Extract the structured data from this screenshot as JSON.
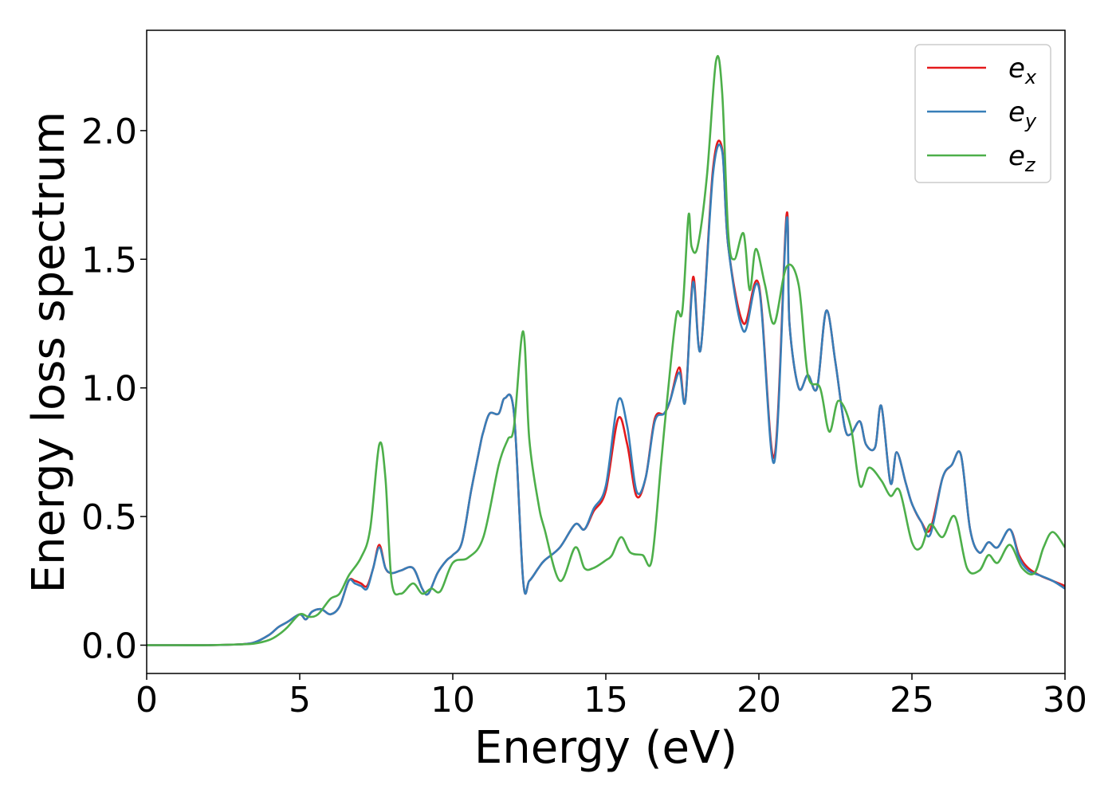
{
  "chart_data": {
    "type": "line",
    "title": "",
    "xlabel": "Energy (eV)",
    "ylabel": "Energy loss spectrum",
    "xlim": [
      0,
      30
    ],
    "ylim": [
      -0.11,
      2.39
    ],
    "xticks": [
      0,
      5,
      10,
      15,
      20,
      25,
      30
    ],
    "xtick_labels": [
      "0",
      "5",
      "10",
      "15",
      "20",
      "25",
      "30"
    ],
    "yticks": [
      0.0,
      0.5,
      1.0,
      1.5,
      2.0
    ],
    "ytick_labels": [
      "0.0",
      "0.5",
      "1.0",
      "1.5",
      "2.0"
    ],
    "grid": false,
    "legend_position": "top-right",
    "series": [
      {
        "name": "e_x",
        "label_base": "e",
        "label_sub": "x",
        "color": "#e41a1c",
        "x": [
          0,
          1,
          2,
          3,
          3.5,
          4,
          4.3,
          4.6,
          5,
          5.2,
          5.4,
          5.7,
          6,
          6.3,
          6.6,
          6.8,
          7,
          7.2,
          7.4,
          7.6,
          7.8,
          8,
          8.3,
          8.7,
          9,
          9.2,
          9.5,
          9.8,
          10,
          10.3,
          10.6,
          10.9,
          11,
          11.2,
          11.5,
          11.7,
          12,
          12.3,
          12.5,
          12.8,
          13,
          13.5,
          14,
          14.3,
          14.6,
          15,
          15.4,
          15.7,
          16,
          16.3,
          16.6,
          16.9,
          17.1,
          17.4,
          17.6,
          17.85,
          18.1,
          18.5,
          18.8,
          19,
          19.5,
          20,
          20.5,
          20.9,
          21,
          21.3,
          21.6,
          21.9,
          22.2,
          22.5,
          22.8,
          23,
          23.3,
          23.5,
          23.8,
          24,
          24.3,
          24.5,
          24.8,
          25,
          25.3,
          25.6,
          26,
          26.3,
          26.6,
          26.9,
          27.2,
          27.5,
          27.8,
          28.2,
          28.5,
          28.8,
          29.2,
          29.6,
          30
        ],
        "y": [
          0,
          0,
          0,
          0.003,
          0.01,
          0.04,
          0.07,
          0.09,
          0.12,
          0.1,
          0.13,
          0.14,
          0.12,
          0.15,
          0.25,
          0.25,
          0.24,
          0.23,
          0.3,
          0.39,
          0.3,
          0.28,
          0.29,
          0.3,
          0.22,
          0.2,
          0.28,
          0.33,
          0.35,
          0.4,
          0.6,
          0.78,
          0.83,
          0.9,
          0.9,
          0.96,
          0.9,
          0.25,
          0.25,
          0.3,
          0.33,
          0.38,
          0.47,
          0.45,
          0.52,
          0.6,
          0.88,
          0.78,
          0.58,
          0.65,
          0.88,
          0.9,
          0.95,
          1.08,
          0.95,
          1.43,
          1.15,
          1.85,
          1.93,
          1.55,
          1.25,
          1.4,
          0.73,
          1.67,
          1.25,
          1.0,
          1.05,
          1.0,
          1.3,
          1.1,
          0.85,
          0.82,
          0.87,
          0.78,
          0.77,
          0.93,
          0.63,
          0.75,
          0.63,
          0.55,
          0.48,
          0.45,
          0.65,
          0.7,
          0.74,
          0.45,
          0.36,
          0.4,
          0.38,
          0.45,
          0.35,
          0.3,
          0.27,
          0.25,
          0.23
        ]
      },
      {
        "name": "e_y",
        "label_base": "e",
        "label_sub": "y",
        "color": "#377eb8",
        "x": [
          0,
          1,
          2,
          3,
          3.5,
          4,
          4.3,
          4.6,
          5,
          5.2,
          5.4,
          5.7,
          6,
          6.3,
          6.6,
          6.8,
          7,
          7.2,
          7.4,
          7.6,
          7.8,
          8,
          8.3,
          8.7,
          9,
          9.2,
          9.5,
          9.8,
          10,
          10.3,
          10.6,
          10.9,
          11,
          11.2,
          11.5,
          11.7,
          12,
          12.3,
          12.5,
          12.8,
          13,
          13.5,
          14,
          14.3,
          14.6,
          15,
          15.4,
          15.7,
          16,
          16.3,
          16.6,
          16.9,
          17.1,
          17.4,
          17.6,
          17.85,
          18.1,
          18.5,
          18.8,
          19,
          19.5,
          20,
          20.5,
          20.9,
          21,
          21.3,
          21.6,
          21.9,
          22.2,
          22.5,
          22.8,
          23,
          23.3,
          23.5,
          23.8,
          24,
          24.3,
          24.5,
          24.8,
          25,
          25.3,
          25.6,
          26,
          26.3,
          26.6,
          26.9,
          27.2,
          27.5,
          27.8,
          28.2,
          28.5,
          28.8,
          29.2,
          29.6,
          30
        ],
        "y": [
          0,
          0,
          0,
          0.003,
          0.01,
          0.04,
          0.07,
          0.09,
          0.12,
          0.1,
          0.13,
          0.14,
          0.12,
          0.15,
          0.25,
          0.24,
          0.23,
          0.22,
          0.3,
          0.38,
          0.3,
          0.28,
          0.29,
          0.3,
          0.22,
          0.2,
          0.28,
          0.33,
          0.35,
          0.4,
          0.6,
          0.78,
          0.83,
          0.9,
          0.9,
          0.96,
          0.9,
          0.25,
          0.25,
          0.3,
          0.33,
          0.38,
          0.47,
          0.45,
          0.53,
          0.62,
          0.95,
          0.85,
          0.6,
          0.65,
          0.87,
          0.9,
          0.95,
          1.06,
          0.95,
          1.41,
          1.15,
          1.83,
          1.92,
          1.55,
          1.22,
          1.39,
          0.71,
          1.65,
          1.25,
          1.0,
          1.05,
          1.0,
          1.3,
          1.1,
          0.85,
          0.82,
          0.87,
          0.78,
          0.77,
          0.93,
          0.63,
          0.75,
          0.63,
          0.55,
          0.48,
          0.43,
          0.65,
          0.7,
          0.74,
          0.45,
          0.36,
          0.4,
          0.38,
          0.45,
          0.34,
          0.29,
          0.27,
          0.25,
          0.22
        ]
      },
      {
        "name": "e_z",
        "label_base": "e",
        "label_sub": "z",
        "color": "#4daf4a",
        "x": [
          0,
          1,
          2,
          3,
          3.5,
          4,
          4.3,
          4.6,
          5,
          5.3,
          5.6,
          6,
          6.3,
          6.6,
          7,
          7.3,
          7.6,
          7.8,
          8,
          8.3,
          8.7,
          9,
          9.3,
          9.6,
          10,
          10.5,
          11,
          11.5,
          11.8,
          12,
          12.3,
          12.5,
          12.8,
          13,
          13.5,
          14,
          14.3,
          14.6,
          15,
          15.2,
          15.5,
          15.8,
          16.2,
          16.5,
          16.8,
          17,
          17.3,
          17.5,
          17.7,
          17.8,
          18,
          18.3,
          18.6,
          18.8,
          19,
          19.2,
          19.5,
          19.7,
          19.9,
          20.2,
          20.5,
          20.9,
          21.3,
          21.6,
          22,
          22.3,
          22.6,
          23,
          23.3,
          23.6,
          24,
          24.3,
          24.6,
          25,
          25.3,
          25.6,
          26,
          26.4,
          26.8,
          27.2,
          27.5,
          27.8,
          28.2,
          28.6,
          29,
          29.3,
          29.6,
          30
        ],
        "y": [
          0,
          0,
          0,
          0.003,
          0.006,
          0.02,
          0.04,
          0.07,
          0.12,
          0.11,
          0.12,
          0.18,
          0.2,
          0.27,
          0.34,
          0.45,
          0.78,
          0.65,
          0.25,
          0.2,
          0.24,
          0.2,
          0.22,
          0.21,
          0.32,
          0.34,
          0.42,
          0.7,
          0.8,
          0.85,
          1.22,
          0.8,
          0.55,
          0.45,
          0.25,
          0.38,
          0.3,
          0.3,
          0.33,
          0.35,
          0.42,
          0.36,
          0.35,
          0.33,
          0.7,
          0.95,
          1.28,
          1.3,
          1.67,
          1.55,
          1.55,
          1.82,
          2.27,
          2.15,
          1.6,
          1.5,
          1.6,
          1.38,
          1.54,
          1.4,
          1.25,
          1.47,
          1.4,
          1.05,
          1.0,
          0.83,
          0.95,
          0.85,
          0.62,
          0.69,
          0.64,
          0.58,
          0.6,
          0.4,
          0.38,
          0.47,
          0.42,
          0.5,
          0.3,
          0.29,
          0.35,
          0.32,
          0.39,
          0.3,
          0.28,
          0.38,
          0.44,
          0.38
        ]
      }
    ]
  }
}
